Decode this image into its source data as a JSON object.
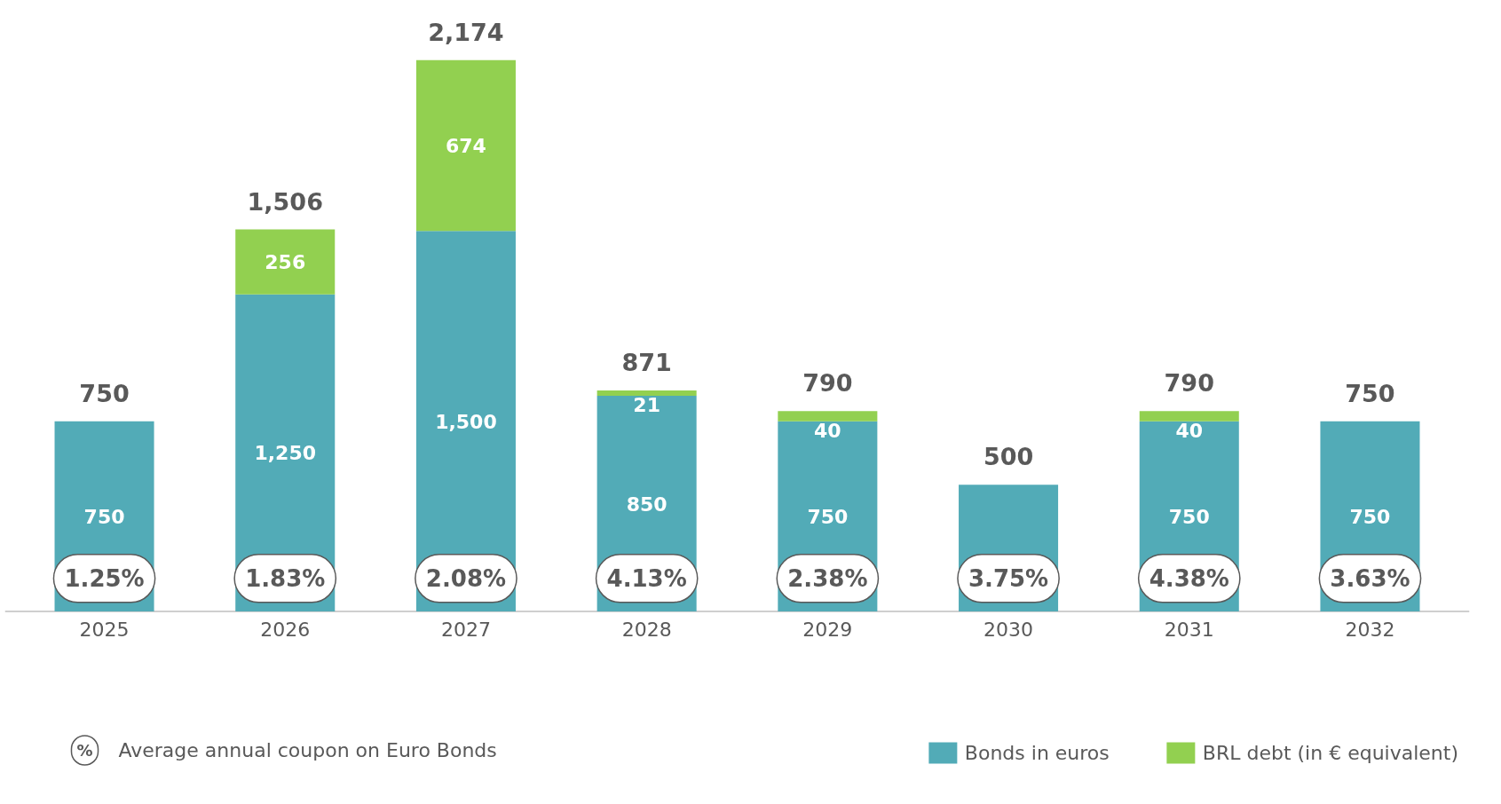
{
  "chart_data": {
    "type": "bar",
    "stacked": true,
    "categories": [
      "2025",
      "2026",
      "2027",
      "2028",
      "2029",
      "2030",
      "2031",
      "2032"
    ],
    "series": [
      {
        "name": "Bonds in euros",
        "color": "#52abb7",
        "values": [
          750,
          1250,
          1500,
          850,
          750,
          500,
          750,
          750
        ],
        "value_labels": [
          "750",
          "1,250",
          "1,500",
          "850",
          "750",
          null,
          "750",
          "750"
        ]
      },
      {
        "name": "BRL debt (in € equivalent)",
        "color": "#92d050",
        "values": [
          0,
          256,
          674,
          21,
          40,
          0,
          40,
          0
        ],
        "value_labels": [
          null,
          "256",
          "674",
          "21",
          "40",
          null,
          "40",
          null
        ]
      }
    ],
    "totals": [
      "750",
      "1,506",
      "2,174",
      "871",
      "790",
      "500",
      "790",
      "750"
    ],
    "annotations": [
      "1.25%",
      "1.83%",
      "2.08%",
      "4.13%",
      "2.38%",
      "3.75%",
      "4.38%",
      "3.63%",
      "%",
      "Average annual coupon on Euro Bonds"
    ],
    "legend": "bottom",
    "grid": false,
    "tick_labels": "x"
  }
}
